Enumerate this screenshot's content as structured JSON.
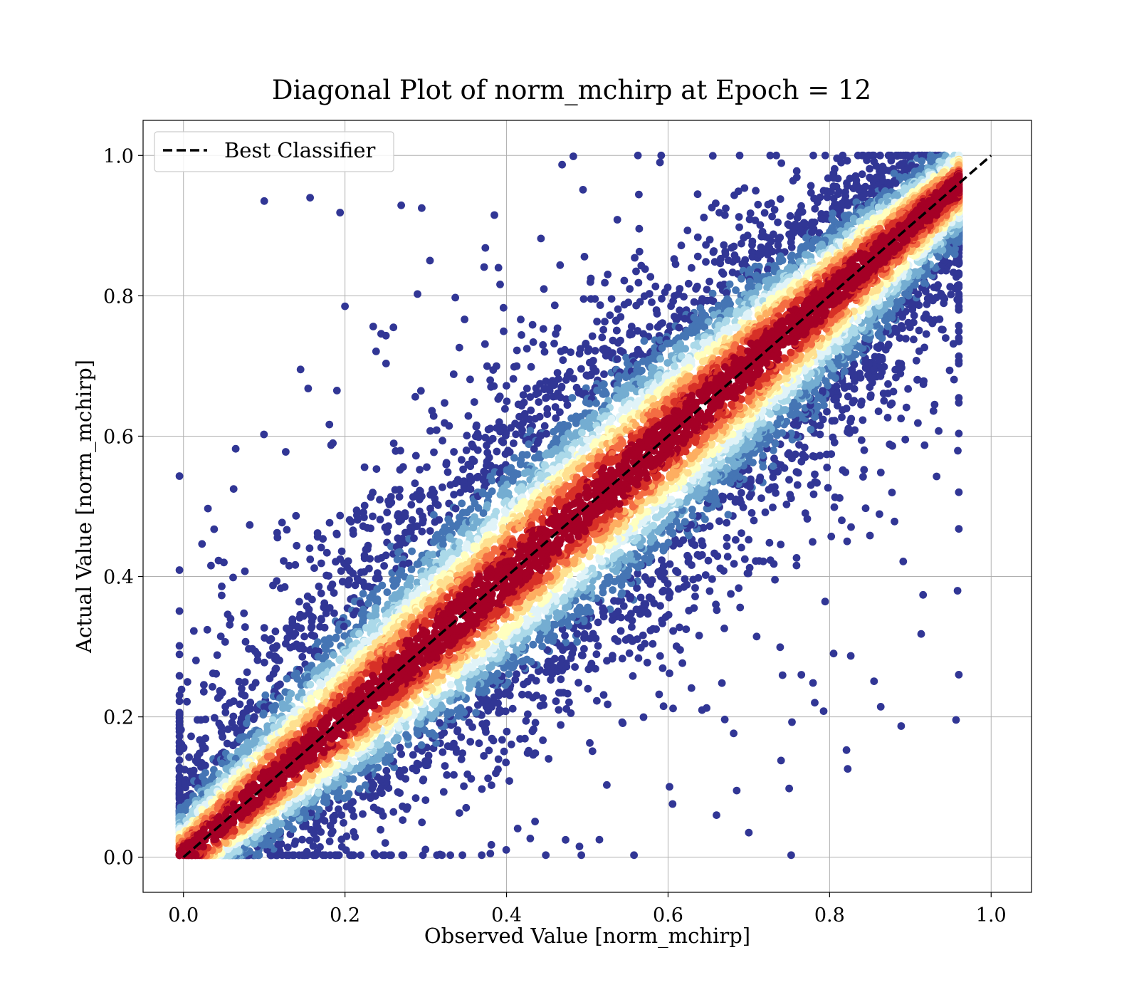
{
  "chart_data": {
    "type": "scatter",
    "title": "Diagonal Plot of norm_mchirp at Epoch = 12",
    "xlabel": "Observed Value [norm_mchirp]",
    "ylabel": "Actual Value [norm_mchirp]",
    "xlim": [
      -0.05,
      1.05
    ],
    "ylim": [
      -0.05,
      1.05
    ],
    "xticks": [
      "0.0",
      "0.2",
      "0.4",
      "0.6",
      "0.8",
      "1.0"
    ],
    "yticks": [
      "0.0",
      "0.2",
      "0.4",
      "0.6",
      "0.8",
      "1.0"
    ],
    "grid": true,
    "legend": {
      "placement": "top-left",
      "entries": [
        "Best Classifier"
      ]
    },
    "reference_line": {
      "name": "Best Classifier",
      "style": "dashed",
      "color": "#000000",
      "x": [
        0.0,
        1.0
      ],
      "y": [
        0.0,
        1.0
      ]
    },
    "colormap": "RdYlBu_r (point density: dark blue = sparse, red = dense)",
    "colors": [
      "#313695",
      "#4575b4",
      "#74add1",
      "#abd9e9",
      "#e0f3f8",
      "#ffffbf",
      "#fee090",
      "#fdae61",
      "#f46d43",
      "#d73027",
      "#a50026"
    ],
    "points_visible_estimate": 11000,
    "distribution": "points concentrated along y = x from about (0.0, 0.0) to (0.95, 0.98); spread widest near the middle (about ±0.25)",
    "outliers": [
      {
        "x": 0.1,
        "y": 0.935
      },
      {
        "x": 0.295,
        "y": 0.925
      },
      {
        "x": 0.2,
        "y": 0.785
      },
      {
        "x": 0.145,
        "y": 0.695
      },
      {
        "x": 0.19,
        "y": 0.665
      },
      {
        "x": 0.385,
        "y": 0.915
      },
      {
        "x": 0.59,
        "y": 0.99
      },
      {
        "x": 0.7,
        "y": 0.035
      },
      {
        "x": 0.765,
        "y": 0.26
      },
      {
        "x": 0.75,
        "y": 0.098
      },
      {
        "x": 0.685,
        "y": 0.095
      },
      {
        "x": 0.515,
        "y": 0.025
      },
      {
        "x": 0.05,
        "y": 0.42
      },
      {
        "x": 0.26,
        "y": 0.755
      },
      {
        "x": 0.93,
        "y": 0.645
      },
      {
        "x": 0.39,
        "y": 0.84
      },
      {
        "x": 0.185,
        "y": 0.59
      },
      {
        "x": 0.66,
        "y": 0.06
      }
    ]
  }
}
